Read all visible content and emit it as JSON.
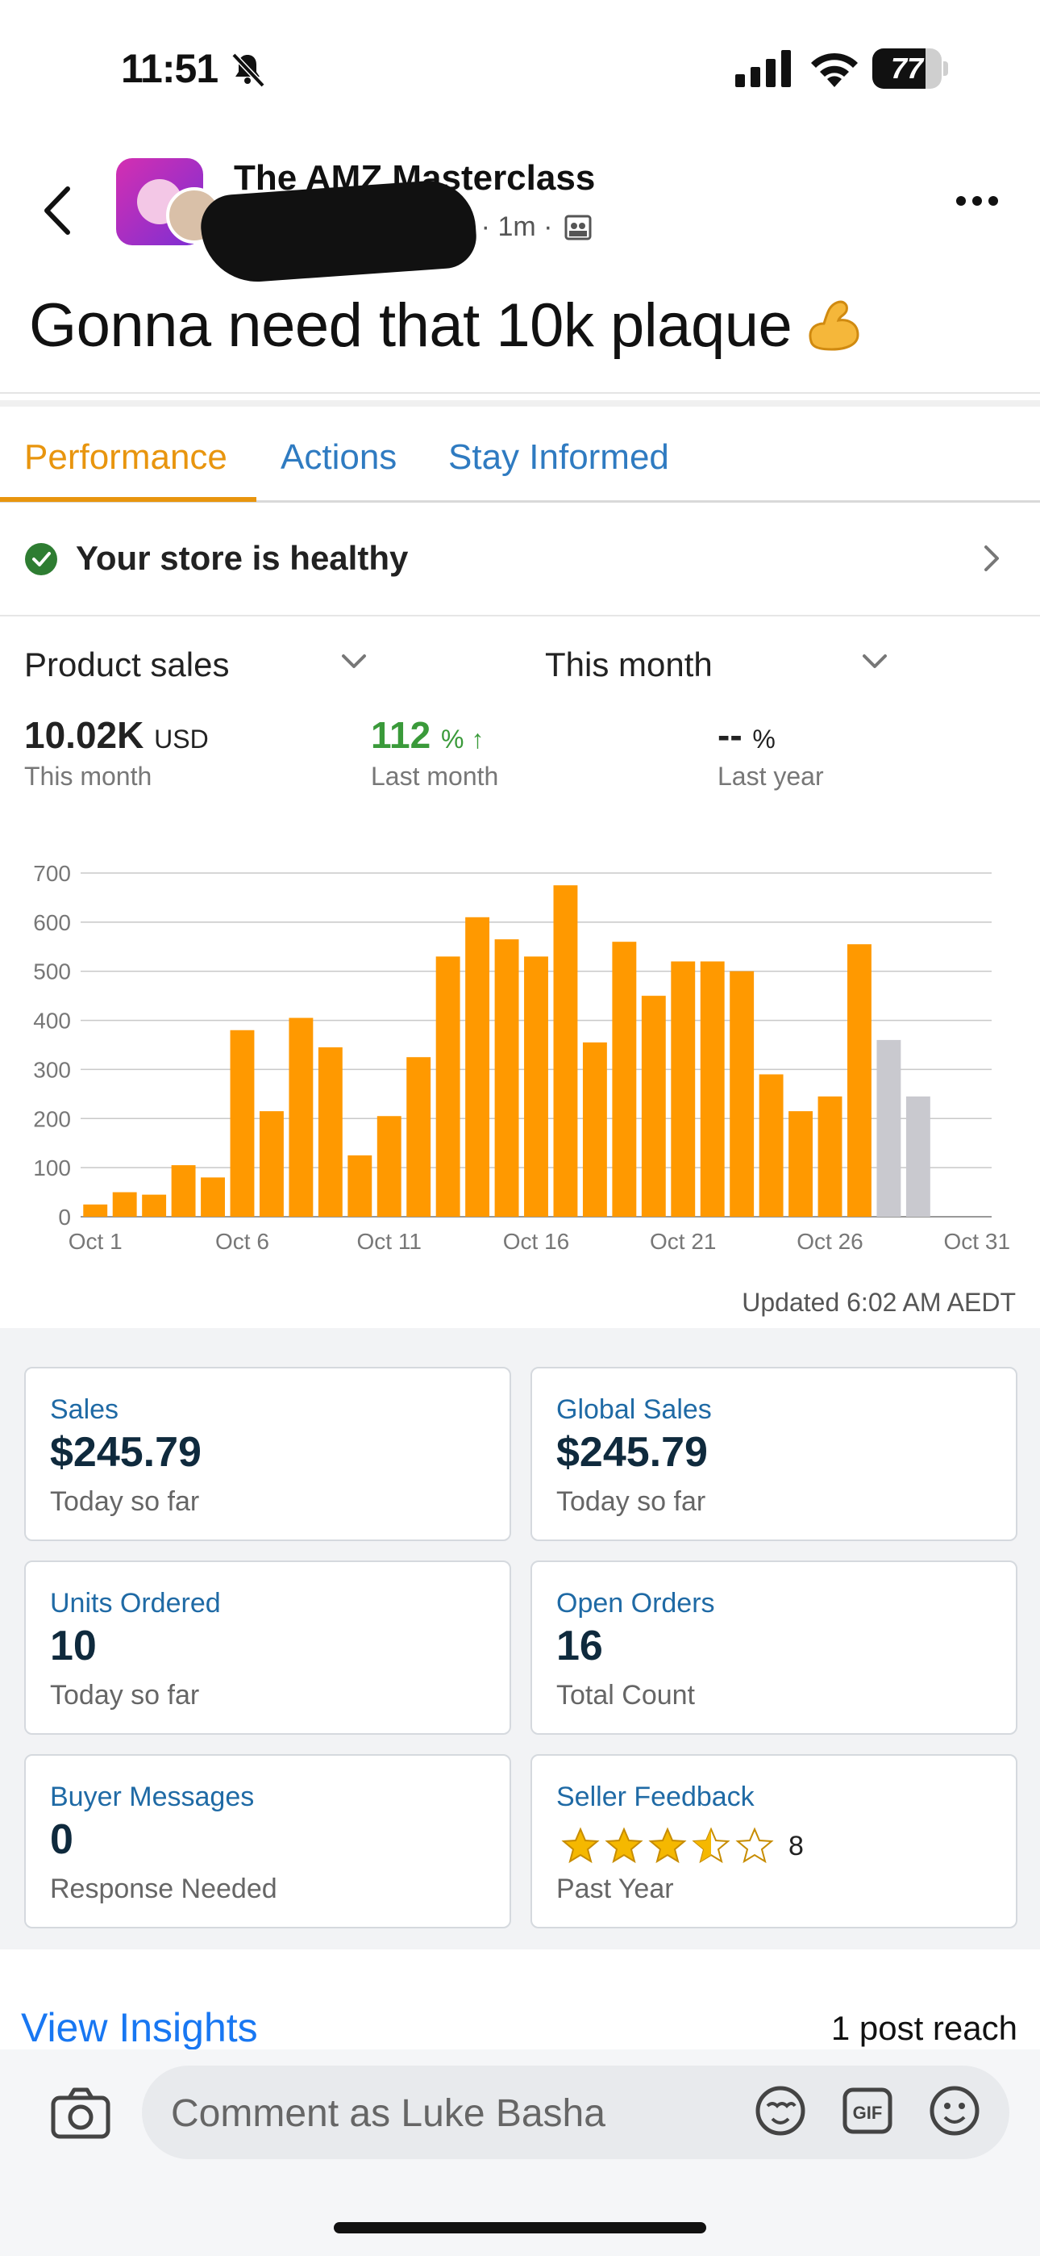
{
  "status_bar": {
    "time": "11:51",
    "battery": "77",
    "battery_level": 0.77
  },
  "post": {
    "group_name": "The AMZ Masterclass",
    "meta_tail": "em · 1m ·",
    "text": "Gonna need that 10k plaque"
  },
  "tabs": [
    {
      "label": "Performance",
      "active": true
    },
    {
      "label": "Actions",
      "active": false
    },
    {
      "label": "Stay Informed",
      "active": false
    }
  ],
  "health": {
    "label": "Your store is healthy"
  },
  "selectors": {
    "metric": "Product sales",
    "period": "This month"
  },
  "metrics": [
    {
      "value": "10.02K",
      "unit": "USD",
      "caption": "This month"
    },
    {
      "value": "112",
      "unit": "% ↑",
      "caption": "Last month"
    },
    {
      "value": "--",
      "unit": "%",
      "caption": "Last year"
    }
  ],
  "chart_data": {
    "type": "bar",
    "x_tick_labels": [
      "Oct 1",
      "Oct 6",
      "Oct 11",
      "Oct 16",
      "Oct 21",
      "Oct 26",
      "Oct 31"
    ],
    "y_ticks": [
      0,
      100,
      200,
      300,
      400,
      500,
      600,
      700
    ],
    "ylim": [
      0,
      700
    ],
    "days": [
      1,
      2,
      3,
      4,
      5,
      6,
      7,
      8,
      9,
      10,
      11,
      12,
      13,
      14,
      15,
      16,
      17,
      18,
      19,
      20,
      21,
      22,
      23,
      24,
      25,
      26,
      27,
      28,
      29
    ],
    "values": [
      25,
      50,
      45,
      105,
      80,
      380,
      215,
      405,
      345,
      125,
      205,
      325,
      530,
      610,
      565,
      530,
      675,
      355,
      560,
      450,
      520,
      520,
      500,
      290,
      215,
      245,
      555,
      360,
      245
    ],
    "bar_colors": {
      "primary": "#ff9900",
      "muted": "#c9c9cf"
    },
    "muted_from_day": 28,
    "grid": true
  },
  "updated": "Updated 6:02 AM AEDT",
  "cards": [
    {
      "title": "Sales",
      "value": "$245.79",
      "sub": "Today so far"
    },
    {
      "title": "Global Sales",
      "value": "$245.79",
      "sub": "Today so far"
    },
    {
      "title": "Units Ordered",
      "value": "10",
      "sub": "Today so far"
    },
    {
      "title": "Open Orders",
      "value": "16",
      "sub": "Total Count"
    },
    {
      "title": "Buyer Messages",
      "value": "0",
      "sub": "Response Needed"
    },
    {
      "title": "Seller Feedback",
      "rating": 3.5,
      "count": "8",
      "sub": "Past Year"
    }
  ],
  "footer": {
    "view_insights": "View Insights",
    "reach": "1 post reach"
  },
  "comment": {
    "placeholder": "Comment as Luke Basha"
  }
}
